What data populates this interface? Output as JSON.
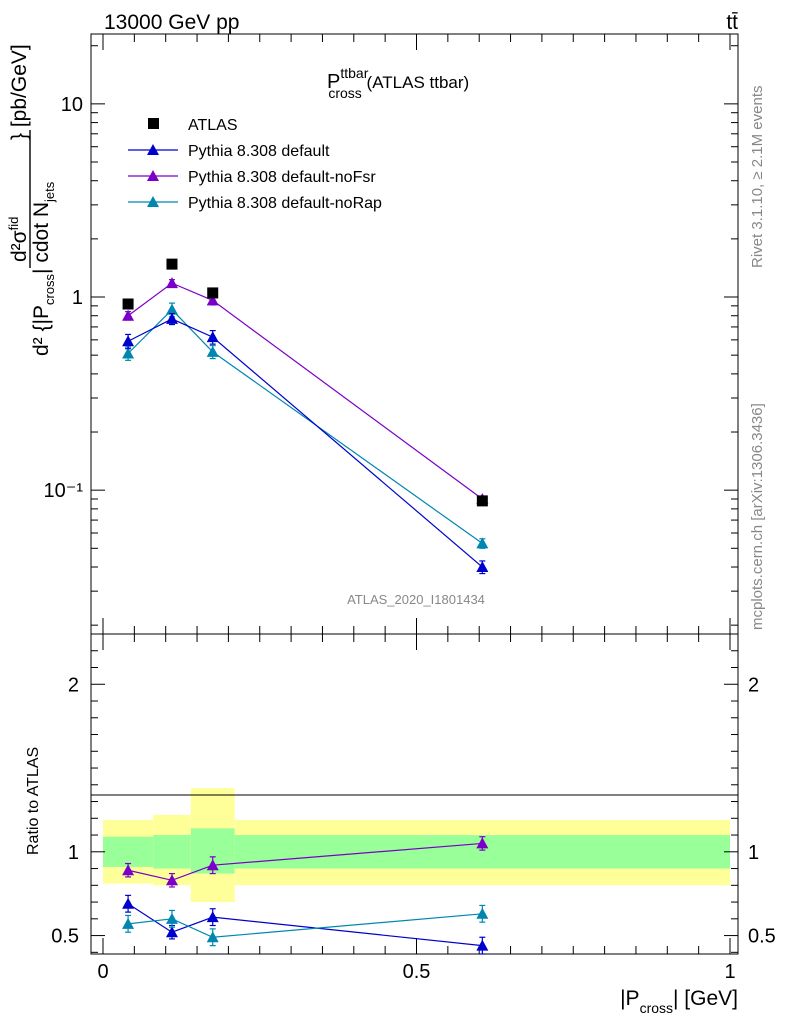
{
  "header": {
    "energy_label": "13000 GeV pp",
    "process_label": "tt̄"
  },
  "side_labels": {
    "rivet": "Rivet 3.1.10, ≥ 2.1M events",
    "mcplots": "mcplots.cern.ch [arXiv:1306.3436]"
  },
  "watermark": "ATLAS_2020_I1801434",
  "plot_title": {
    "main": "P",
    "sup": "ttbar",
    "sub": "cross",
    "suffix": " (ATLAS ttbar)"
  },
  "y_axis_main": {
    "d2sigma": "d²σ",
    "fid": "fid",
    "denominator": "d² {|P",
    "denominator_sub": "cross",
    "denominator_mid": "| cdot N",
    "denominator_sub2": "jets",
    "units": "} [pb/GeV]"
  },
  "y_axis_ratio": "Ratio to ATLAS",
  "x_axis": {
    "label_pre": "|P",
    "label_sub": "cross",
    "label_post": "| [GeV]"
  },
  "chart_data": [
    {
      "type": "scatter",
      "panel": "main",
      "title": "Pcross ttbar (ATLAS ttbar)",
      "yscale": "log",
      "xlim": [
        0,
        1
      ],
      "ylim": [
        0.018,
        23
      ],
      "y_tick_labels": [
        "10⁻¹",
        "1",
        "10"
      ],
      "legend_position": "top-left",
      "series": [
        {
          "name": "ATLAS",
          "marker": "square",
          "color": "#000000",
          "x": [
            0.04,
            0.11,
            0.175,
            0.605
          ],
          "y": [
            0.92,
            1.48,
            1.05,
            0.088
          ],
          "err": [
            0,
            0,
            0,
            0
          ]
        },
        {
          "name": "Pythia 8.308 default",
          "marker": "triangle",
          "color": "#0000cc",
          "x": [
            0.04,
            0.11,
            0.175,
            0.605
          ],
          "y": [
            0.59,
            0.77,
            0.62,
            0.04
          ],
          "err": [
            0.05,
            0.05,
            0.05,
            0.003
          ]
        },
        {
          "name": "Pythia 8.308 default-noFsr",
          "marker": "triangle",
          "color": "#7b00c7",
          "x": [
            0.04,
            0.11,
            0.175,
            0.605
          ],
          "y": [
            0.8,
            1.18,
            0.96,
            0.09
          ],
          "err": [
            0.04,
            0.05,
            0.05,
            0.003
          ]
        },
        {
          "name": "Pythia 8.308 default-noRap",
          "marker": "triangle",
          "color": "#0087b0",
          "x": [
            0.04,
            0.11,
            0.175,
            0.605
          ],
          "y": [
            0.51,
            0.86,
            0.52,
            0.053
          ],
          "err": [
            0.04,
            0.07,
            0.04,
            0.003
          ]
        }
      ]
    },
    {
      "type": "scatter",
      "panel": "ratio",
      "ylabel": "Ratio to ATLAS",
      "xlabel": "|Pcross| [GeV]",
      "xlim": [
        0,
        1
      ],
      "ylim": [
        0.39,
        2.3
      ],
      "x_ticks": [
        0,
        0.5,
        1
      ],
      "x_tick_labels": [
        "0",
        "0.5",
        "1"
      ],
      "y_ticks": [
        0.5,
        1,
        2
      ],
      "y_tick_labels": [
        "0.5",
        "1",
        "2"
      ],
      "bands": {
        "edges": [
          0,
          0.08,
          0.14,
          0.21,
          1
        ],
        "inner_low": [
          0.91,
          0.9,
          0.87,
          0.9
        ],
        "inner_high": [
          1.09,
          1.1,
          1.14,
          1.1
        ],
        "outer_low": [
          0.81,
          0.8,
          0.7,
          0.8
        ],
        "outer_high": [
          1.19,
          1.22,
          1.38,
          1.19
        ],
        "inner_color": "#99ff99",
        "outer_color": "#ffff99"
      },
      "series": [
        {
          "name": "Pythia 8.308 default-noFsr",
          "color": "#7b00c7",
          "x": [
            0.04,
            0.11,
            0.175,
            0.605
          ],
          "y": [
            0.89,
            0.83,
            0.92,
            1.05
          ],
          "err": [
            0.04,
            0.04,
            0.05,
            0.04
          ]
        },
        {
          "name": "Pythia 8.308 default",
          "color": "#0000cc",
          "x": [
            0.04,
            0.11,
            0.175,
            0.605
          ],
          "y": [
            0.69,
            0.52,
            0.61,
            0.44
          ],
          "err": [
            0.05,
            0.04,
            0.05,
            0.05
          ]
        },
        {
          "name": "Pythia 8.308 default-noRap",
          "color": "#0087b0",
          "x": [
            0.04,
            0.11,
            0.175,
            0.605
          ],
          "y": [
            0.57,
            0.6,
            0.49,
            0.63
          ],
          "err": [
            0.05,
            0.05,
            0.05,
            0.05
          ]
        }
      ]
    }
  ]
}
